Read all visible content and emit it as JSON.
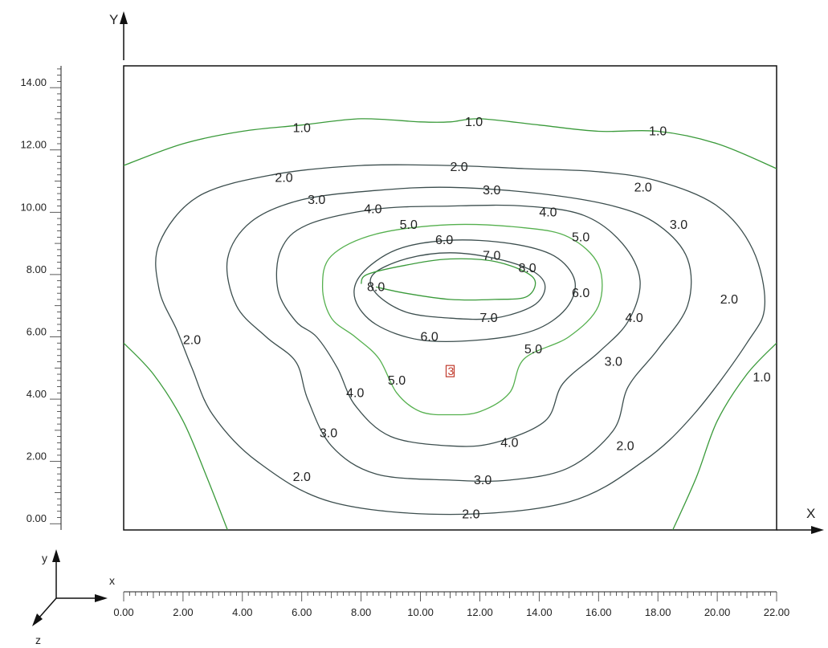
{
  "chart_data": {
    "type": "contour",
    "x_axis": {
      "title": "X",
      "range": [
        0,
        22
      ],
      "ticks": [
        "0.00",
        "2.00",
        "4.00",
        "6.00",
        "8.00",
        "10.00",
        "12.00",
        "14.00",
        "16.00",
        "18.00",
        "20.00",
        "22.00"
      ]
    },
    "y_axis": {
      "title": "Y",
      "range": [
        -0.2,
        14.7
      ],
      "ticks": [
        "0.00",
        "2.00",
        "4.00",
        "6.00",
        "8.00",
        "10.00",
        "12.00",
        "14.00"
      ]
    },
    "triad": {
      "x": "x",
      "y": "y",
      "z": "z"
    },
    "marker": {
      "x": 11.0,
      "y": 4.9,
      "label": "3"
    },
    "colors": {
      "green": "#3a9a3a",
      "light_green": "#55b04e",
      "dark": "#3c4e4e",
      "frame": "#111111"
    },
    "contours": [
      {
        "level": 1.0,
        "color": "green",
        "closed": false,
        "points": [
          [
            0,
            11.5
          ],
          [
            2,
            12.2
          ],
          [
            4,
            12.6
          ],
          [
            6,
            12.8
          ],
          [
            8,
            13.0
          ],
          [
            10,
            12.9
          ],
          [
            11,
            12.9
          ],
          [
            12,
            13.0
          ],
          [
            14,
            12.8
          ],
          [
            16,
            12.6
          ],
          [
            18,
            12.6
          ],
          [
            20,
            12.2
          ],
          [
            22,
            11.4
          ]
        ]
      },
      {
        "level": 1.0,
        "color": "green",
        "closed": false,
        "points": [
          [
            0,
            5.8
          ],
          [
            1,
            4.8
          ],
          [
            2,
            3.3
          ],
          [
            2.8,
            1.5
          ],
          [
            3.5,
            -0.2
          ]
        ]
      },
      {
        "level": 1.0,
        "color": "green",
        "closed": false,
        "points": [
          [
            22,
            5.8
          ],
          [
            21,
            4.8
          ],
          [
            20,
            3.3
          ],
          [
            19.3,
            1.5
          ],
          [
            18.5,
            -0.2
          ]
        ]
      },
      {
        "level": 2.0,
        "color": "dark",
        "closed": true,
        "points": [
          [
            11,
            11.5
          ],
          [
            13.5,
            11.4
          ],
          [
            16,
            11.3
          ],
          [
            18,
            11.0
          ],
          [
            20,
            10.2
          ],
          [
            21.2,
            8.8
          ],
          [
            21.6,
            7.0
          ],
          [
            21.0,
            5.8
          ],
          [
            19.2,
            3.5
          ],
          [
            17.5,
            2.0
          ],
          [
            15,
            0.7
          ],
          [
            11,
            0.3
          ],
          [
            7,
            0.7
          ],
          [
            4.5,
            2.0
          ],
          [
            3,
            3.5
          ],
          [
            2.3,
            5.0
          ],
          [
            1.8,
            6.2
          ],
          [
            1.2,
            7.5
          ],
          [
            1.2,
            9.0
          ],
          [
            2.5,
            10.5
          ],
          [
            5,
            11.2
          ],
          [
            8,
            11.5
          ]
        ]
      },
      {
        "level": 3.0,
        "color": "dark",
        "closed": true,
        "points": [
          [
            11,
            10.8
          ],
          [
            14,
            10.6
          ],
          [
            16.5,
            10.2
          ],
          [
            18,
            9.6
          ],
          [
            19,
            8.5
          ],
          [
            19,
            7.0
          ],
          [
            18,
            5.6
          ],
          [
            17,
            4.4
          ],
          [
            16.5,
            3.0
          ],
          [
            15,
            1.8
          ],
          [
            13,
            1.4
          ],
          [
            11,
            1.4
          ],
          [
            8.5,
            1.6
          ],
          [
            7,
            2.5
          ],
          [
            6.2,
            4.0
          ],
          [
            5.8,
            5.2
          ],
          [
            4.8,
            6.0
          ],
          [
            3.8,
            7.0
          ],
          [
            3.5,
            8.5
          ],
          [
            4.3,
            9.7
          ],
          [
            6,
            10.4
          ],
          [
            8.5,
            10.7
          ]
        ]
      },
      {
        "level": 4.0,
        "color": "dark",
        "closed": true,
        "points": [
          [
            11,
            10.2
          ],
          [
            13.5,
            10.2
          ],
          [
            15.5,
            9.9
          ],
          [
            16.8,
            9.0
          ],
          [
            17.4,
            7.8
          ],
          [
            17,
            6.5
          ],
          [
            16,
            5.5
          ],
          [
            14.8,
            4.5
          ],
          [
            14.2,
            3.3
          ],
          [
            12.5,
            2.6
          ],
          [
            11,
            2.5
          ],
          [
            9,
            2.8
          ],
          [
            7.8,
            3.8
          ],
          [
            7.2,
            5.0
          ],
          [
            6.5,
            6.0
          ],
          [
            5.8,
            6.5
          ],
          [
            5.2,
            7.5
          ],
          [
            5.3,
            8.8
          ],
          [
            6.2,
            9.6
          ],
          [
            8.5,
            10.1
          ]
        ]
      },
      {
        "level": 5.0,
        "color": "light_green",
        "closed": true,
        "points": [
          [
            11,
            9.6
          ],
          [
            13.5,
            9.5
          ],
          [
            15,
            9.2
          ],
          [
            16,
            8.3
          ],
          [
            16,
            7.0
          ],
          [
            15,
            6.0
          ],
          [
            13.5,
            5.3
          ],
          [
            13.0,
            4.2
          ],
          [
            12.0,
            3.6
          ],
          [
            11,
            3.5
          ],
          [
            10,
            3.6
          ],
          [
            9.2,
            4.2
          ],
          [
            8.6,
            5.3
          ],
          [
            7.8,
            6.0
          ],
          [
            7,
            6.6
          ],
          [
            6.7,
            7.6
          ],
          [
            7,
            8.6
          ],
          [
            8.5,
            9.3
          ]
        ]
      },
      {
        "level": 6.0,
        "color": "dark",
        "closed": true,
        "points": [
          [
            11,
            9.1
          ],
          [
            13,
            9.0
          ],
          [
            14.5,
            8.6
          ],
          [
            15.2,
            7.8
          ],
          [
            14.9,
            6.9
          ],
          [
            13.8,
            6.2
          ],
          [
            12,
            5.9
          ],
          [
            10,
            5.9
          ],
          [
            8.5,
            6.4
          ],
          [
            7.8,
            7.2
          ],
          [
            8,
            8.0
          ],
          [
            9.2,
            8.8
          ]
        ]
      },
      {
        "level": 7.0,
        "color": "dark",
        "closed": true,
        "points": [
          [
            11,
            8.7
          ],
          [
            12.6,
            8.5
          ],
          [
            13.8,
            8.1
          ],
          [
            14.2,
            7.6
          ],
          [
            13.8,
            7.0
          ],
          [
            12.5,
            6.6
          ],
          [
            11,
            6.6
          ],
          [
            9.5,
            6.8
          ],
          [
            8.5,
            7.4
          ],
          [
            8.4,
            8.0
          ],
          [
            9.5,
            8.5
          ]
        ]
      },
      {
        "level": 8.0,
        "color": "green",
        "closed": false,
        "points": [
          [
            8.0,
            7.7
          ],
          [
            8.2,
            8.0
          ],
          [
            9.5,
            8.3
          ],
          [
            11,
            8.5
          ],
          [
            12.6,
            8.4
          ],
          [
            13.8,
            7.9
          ],
          [
            13.6,
            7.3
          ],
          [
            12.5,
            7.2
          ],
          [
            11,
            7.2
          ],
          [
            9.5,
            7.4
          ],
          [
            8.5,
            7.6
          ]
        ]
      }
    ],
    "labels": [
      {
        "text": "1.0",
        "x": 6.0,
        "y": 12.7
      },
      {
        "text": "1.0",
        "x": 11.8,
        "y": 12.9
      },
      {
        "text": "1.0",
        "x": 18.0,
        "y": 12.6
      },
      {
        "text": "2.0",
        "x": 5.4,
        "y": 11.1
      },
      {
        "text": "2.0",
        "x": 11.3,
        "y": 11.45
      },
      {
        "text": "2.0",
        "x": 17.5,
        "y": 10.8
      },
      {
        "text": "3.0",
        "x": 6.5,
        "y": 10.4
      },
      {
        "text": "3.0",
        "x": 12.4,
        "y": 10.7
      },
      {
        "text": "3.0",
        "x": 18.7,
        "y": 9.6
      },
      {
        "text": "4.0",
        "x": 8.4,
        "y": 10.1
      },
      {
        "text": "4.0",
        "x": 14.3,
        "y": 10.0
      },
      {
        "text": "5.0",
        "x": 9.6,
        "y": 9.6
      },
      {
        "text": "5.0",
        "x": 15.4,
        "y": 9.2
      },
      {
        "text": "6.0",
        "x": 10.8,
        "y": 9.1
      },
      {
        "text": "6.0",
        "x": 15.4,
        "y": 7.4
      },
      {
        "text": "6.0",
        "x": 10.3,
        "y": 6.0
      },
      {
        "text": "7.0",
        "x": 12.4,
        "y": 8.6
      },
      {
        "text": "7.0",
        "x": 12.3,
        "y": 6.6
      },
      {
        "text": "8.0",
        "x": 13.6,
        "y": 8.2
      },
      {
        "text": "8.0",
        "x": 8.5,
        "y": 7.6
      },
      {
        "text": "4.0",
        "x": 17.2,
        "y": 6.6
      },
      {
        "text": "5.0",
        "x": 13.8,
        "y": 5.6
      },
      {
        "text": "3.0",
        "x": 16.5,
        "y": 5.2
      },
      {
        "text": "2.0",
        "x": 20.4,
        "y": 7.2
      },
      {
        "text": "2.0",
        "x": 2.3,
        "y": 5.9
      },
      {
        "text": "1.0",
        "x": 21.5,
        "y": 4.7
      },
      {
        "text": "5.0",
        "x": 9.2,
        "y": 4.6
      },
      {
        "text": "4.0",
        "x": 7.8,
        "y": 4.2
      },
      {
        "text": "3.0",
        "x": 6.9,
        "y": 2.9
      },
      {
        "text": "4.0",
        "x": 13.0,
        "y": 2.6
      },
      {
        "text": "2.0",
        "x": 16.9,
        "y": 2.5
      },
      {
        "text": "2.0",
        "x": 6.0,
        "y": 1.5
      },
      {
        "text": "3.0",
        "x": 12.1,
        "y": 1.4
      },
      {
        "text": "2.0",
        "x": 11.7,
        "y": 0.3
      }
    ]
  }
}
